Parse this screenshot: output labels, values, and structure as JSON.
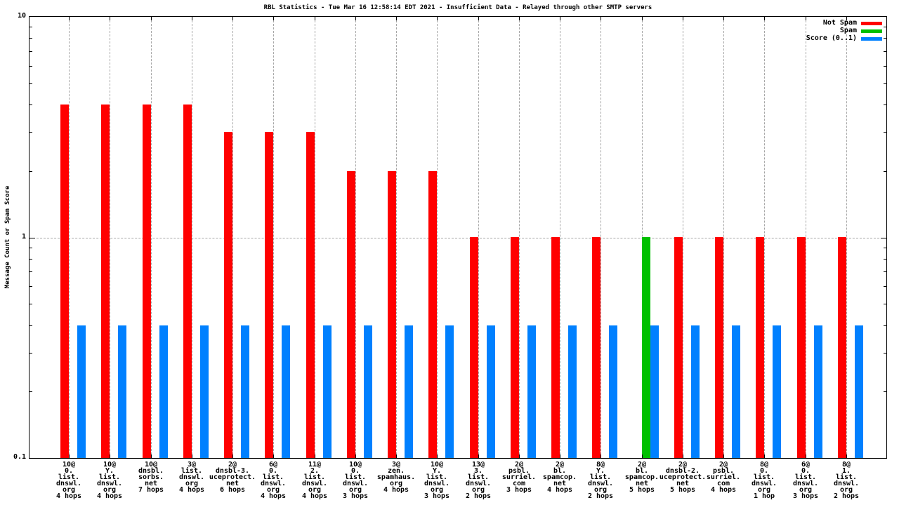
{
  "title": "RBL Statistics - Tue Mar 16 12:58:14 EDT 2021 - Insufficient Data - Relayed through other SMTP servers",
  "ylabel": "Message Count or Spam Score",
  "legend": {
    "items": [
      {
        "label": "Not Spam",
        "color": "#ff0000"
      },
      {
        "label": "Spam",
        "color": "#00c000"
      },
      {
        "label": "Score (0..1)",
        "color": "#0080ff"
      }
    ]
  },
  "chart_data": {
    "type": "bar",
    "y_scale": "log10",
    "ylim": [
      0.1,
      10
    ],
    "yticks": [
      "10",
      "1",
      "0.1"
    ],
    "grid": {
      "horizontal_dashed_at": 1,
      "vertical_dashed_at_each_category": true
    },
    "legend_position": "top-right-inside",
    "categories": [
      [
        "10@",
        "0.",
        "list.",
        "dnswl.",
        "org",
        "4 hops"
      ],
      [
        "10@",
        "Y.",
        "list.",
        "dnswl.",
        "org",
        "4 hops"
      ],
      [
        "10@",
        "dnsbl.",
        "sorbs.",
        "net",
        "7 hops"
      ],
      [
        "3@",
        "list.",
        "dnswl.",
        "org",
        "4 hops"
      ],
      [
        "2@",
        "dnsbl-3.",
        "uceprotect.",
        "net",
        "6 hops"
      ],
      [
        "6@",
        "0.",
        "list.",
        "dnswl.",
        "org",
        "4 hops"
      ],
      [
        "11@",
        "2.",
        "list.",
        "dnswl.",
        "org",
        "4 hops"
      ],
      [
        "10@",
        "0.",
        "list.",
        "dnswl.",
        "org",
        "3 hops"
      ],
      [
        "3@",
        "zen.",
        "spamhaus.",
        "org",
        "4 hops"
      ],
      [
        "10@",
        "Y.",
        "list.",
        "dnswl.",
        "org",
        "3 hops"
      ],
      [
        "13@",
        "3.",
        "list.",
        "dnswl.",
        "org",
        "2 hops"
      ],
      [
        "2@",
        "psbl.",
        "surriel.",
        "com",
        "3 hops"
      ],
      [
        "2@",
        "bl.",
        "spamcop.",
        "net",
        "4 hops"
      ],
      [
        "8@",
        "Y.",
        "list.",
        "dnswl.",
        "org",
        "2 hops"
      ],
      [
        "2@",
        "bl.",
        "spamcop.",
        "net",
        "5 hops"
      ],
      [
        "2@",
        "dnsbl-2.",
        "uceprotect.",
        "net",
        "5 hops"
      ],
      [
        "2@",
        "psbl.",
        "surriel.",
        "com",
        "4 hops"
      ],
      [
        "8@",
        "0.",
        "list.",
        "dnswl.",
        "org",
        "1 hop"
      ],
      [
        "6@",
        "0.",
        "list.",
        "dnswl.",
        "org",
        "3 hops"
      ],
      [
        "8@",
        "1.",
        "list.",
        "dnswl.",
        "org",
        "2 hops"
      ]
    ],
    "series": [
      {
        "name": "Not Spam",
        "color": "#ff0000",
        "values": [
          4,
          4,
          4,
          4,
          3,
          3,
          3,
          2,
          2,
          2,
          1,
          1,
          1,
          1,
          0,
          1,
          1,
          1,
          1,
          1
        ]
      },
      {
        "name": "Spam",
        "color": "#00c000",
        "values": [
          0,
          0,
          0,
          0,
          0,
          0,
          0,
          0,
          0,
          0,
          0,
          0,
          0,
          0,
          1,
          0,
          0,
          0,
          0,
          0
        ]
      },
      {
        "name": "Score (0..1)",
        "color": "#0080ff",
        "values": [
          0.4,
          0.4,
          0.4,
          0.4,
          0.4,
          0.4,
          0.4,
          0.4,
          0.4,
          0.4,
          0.4,
          0.4,
          0.4,
          0.4,
          0.4,
          0.4,
          0.4,
          0.4,
          0.4,
          0.4
        ]
      }
    ]
  }
}
